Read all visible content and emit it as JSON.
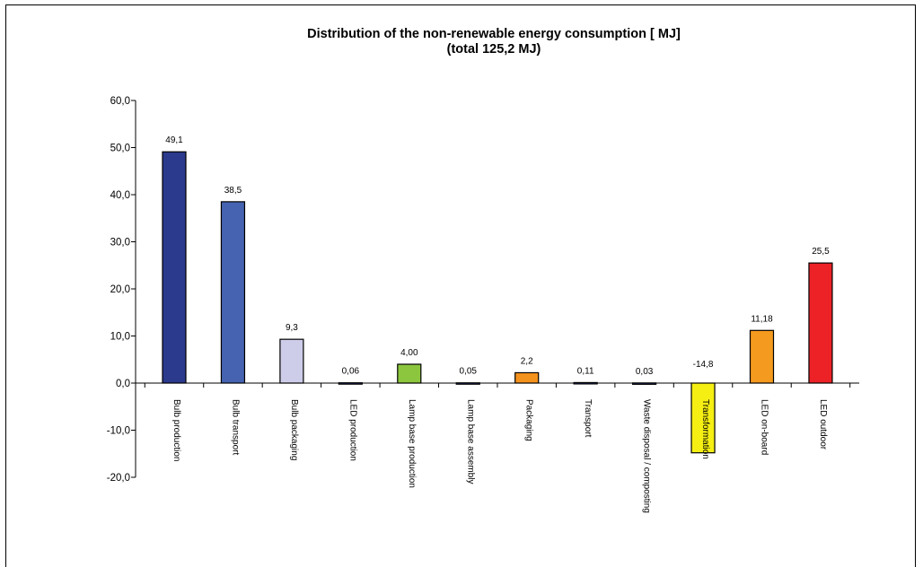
{
  "chart_data": {
    "type": "bar",
    "title": "Distribution of the non-renewable energy consumption [ MJ]",
    "subtitle": "(total 125,2 MJ)",
    "xlabel": "",
    "ylabel": "",
    "ylim": [
      -20,
      60
    ],
    "yticks": [
      "60,0",
      "50,0",
      "40,0",
      "30,0",
      "20,0",
      "10,0",
      "0,0",
      "-10,0",
      "-20,0"
    ],
    "ytick_values": [
      60,
      50,
      40,
      30,
      20,
      10,
      0,
      -10,
      -20
    ],
    "grid": false,
    "legend": "none",
    "categories": [
      "Bulb production",
      "Bulb transport",
      "Bulb packaging",
      "LED production",
      "Lamp base production",
      "Lamp base assembly",
      "Packaging",
      "Transport",
      "Waste disposal / composting",
      "Transformation",
      "LED on-board",
      "LED outdoor"
    ],
    "values": [
      49.1,
      38.5,
      9.3,
      0.06,
      4.0,
      0.05,
      2.2,
      0.11,
      0.03,
      -14.8,
      11.18,
      25.5
    ],
    "value_labels": [
      "49,1",
      "38,5",
      "9,3",
      "0,06",
      "4,00",
      "0,05",
      "2,2",
      "0,11",
      "0,03",
      "-14,8",
      "11,18",
      "25,5"
    ],
    "colors": [
      "#2b3a8c",
      "#4563b0",
      "#cdcdea",
      "#2b3a8c",
      "#8cc63e",
      "#2b3a8c",
      "#f4921e",
      "#2b3a8c",
      "#2b3a8c",
      "#f5ef14",
      "#f49a1e",
      "#ec2227"
    ]
  }
}
